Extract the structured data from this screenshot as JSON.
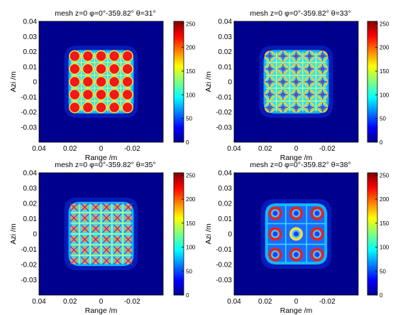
{
  "figure": {
    "background": "#ffffff",
    "plot_background": "#00008f"
  },
  "chart_data": [
    {
      "type": "heatmap",
      "title_prefix": "mesh  z=0  ",
      "phi_range": "0°-359.82°",
      "theta": "31°",
      "xlabel": "Range /m",
      "ylabel": "Azi /m",
      "xlim": [
        0.04,
        -0.04
      ],
      "ylim": [
        -0.04,
        0.04
      ],
      "x_ticks": [
        "0.04",
        "0.02",
        "0",
        "-0.02"
      ],
      "y_ticks": [
        "0.04",
        "0.03",
        "0.02",
        "0.01",
        "0",
        "-0.01",
        "-0.02",
        "-0.03"
      ],
      "colorbar_ticks": [
        "250",
        "200",
        "150",
        "100",
        "50",
        "0"
      ],
      "clim": [
        0,
        255
      ],
      "colormap": "jet",
      "pattern": {
        "description": "5x5 grid of red blobs with grid lines, rounded square footprint",
        "footprint_half_width_m": 0.021,
        "blob_grid": 5,
        "blob_pitch_m": 0.0085
      }
    },
    {
      "type": "heatmap",
      "title_prefix": "mesh  z=0  ",
      "phi_range": "0°-359.82°",
      "theta": "33°",
      "xlabel": "Range /m",
      "ylabel": "Azi /m",
      "xlim": [
        0.04,
        -0.04
      ],
      "ylim": [
        -0.04,
        0.04
      ],
      "x_ticks": [
        "0.04",
        "0.02",
        "0",
        "-0.02"
      ],
      "y_ticks": [
        "0.04",
        "0.03",
        "0.02",
        "0.01",
        "0",
        "-0.01",
        "-0.02",
        "-0.03"
      ],
      "colorbar_ticks": [
        "250",
        "200",
        "150",
        "100",
        "50",
        "0"
      ],
      "clim": [
        0,
        255
      ],
      "colormap": "jet",
      "pattern": {
        "description": "fine checker/ring interference pattern, rounded square footprint",
        "footprint_half_width_m": 0.021,
        "blob_grid": 5,
        "blob_pitch_m": 0.0085
      }
    },
    {
      "type": "heatmap",
      "title_prefix": "mesh  z=0  ",
      "phi_range": "0°-359.82°",
      "theta": "35°",
      "xlabel": "Range /m",
      "ylabel": "Azi /m",
      "xlim": [
        0.04,
        -0.04
      ],
      "ylim": [
        -0.04,
        0.04
      ],
      "x_ticks": [
        "0.04",
        "0.02",
        "0",
        "-0.02"
      ],
      "y_ticks": [
        "0.04",
        "0.03",
        "0.02",
        "0.01",
        "0",
        "-0.01",
        "-0.02",
        "-0.03"
      ],
      "colorbar_ticks": [
        "250",
        "200",
        "150",
        "100",
        "50",
        "0"
      ],
      "clim": [
        0,
        255
      ],
      "colormap": "jet",
      "pattern": {
        "description": "dense crosshatch pattern with orange blobs, rounded square footprint",
        "footprint_half_width_m": 0.021,
        "blob_grid": 6,
        "blob_pitch_m": 0.007
      }
    },
    {
      "type": "heatmap",
      "title_prefix": "mesh  z=0  ",
      "phi_range": "0°-359.82°",
      "theta": "38°",
      "xlabel": "Range /m",
      "ylabel": "Azi /m",
      "xlim": [
        0.04,
        -0.04
      ],
      "ylim": [
        -0.04,
        0.04
      ],
      "x_ticks": [
        "0.04",
        "0.02",
        "0",
        "-0.02"
      ],
      "y_ticks": [
        "0.04",
        "0.03",
        "0.02",
        "0.01",
        "0",
        "-0.01",
        "-0.02",
        "-0.03"
      ],
      "colorbar_ticks": [
        "250",
        "200",
        "150",
        "100",
        "50",
        "0"
      ],
      "clim": [
        0,
        255
      ],
      "colormap": "jet",
      "pattern": {
        "description": "3x3 grid of red rings/blobs with thin grid lines, rounded square footprint",
        "footprint_half_width_m": 0.02,
        "blob_grid": 3,
        "blob_pitch_m": 0.0135
      }
    }
  ]
}
